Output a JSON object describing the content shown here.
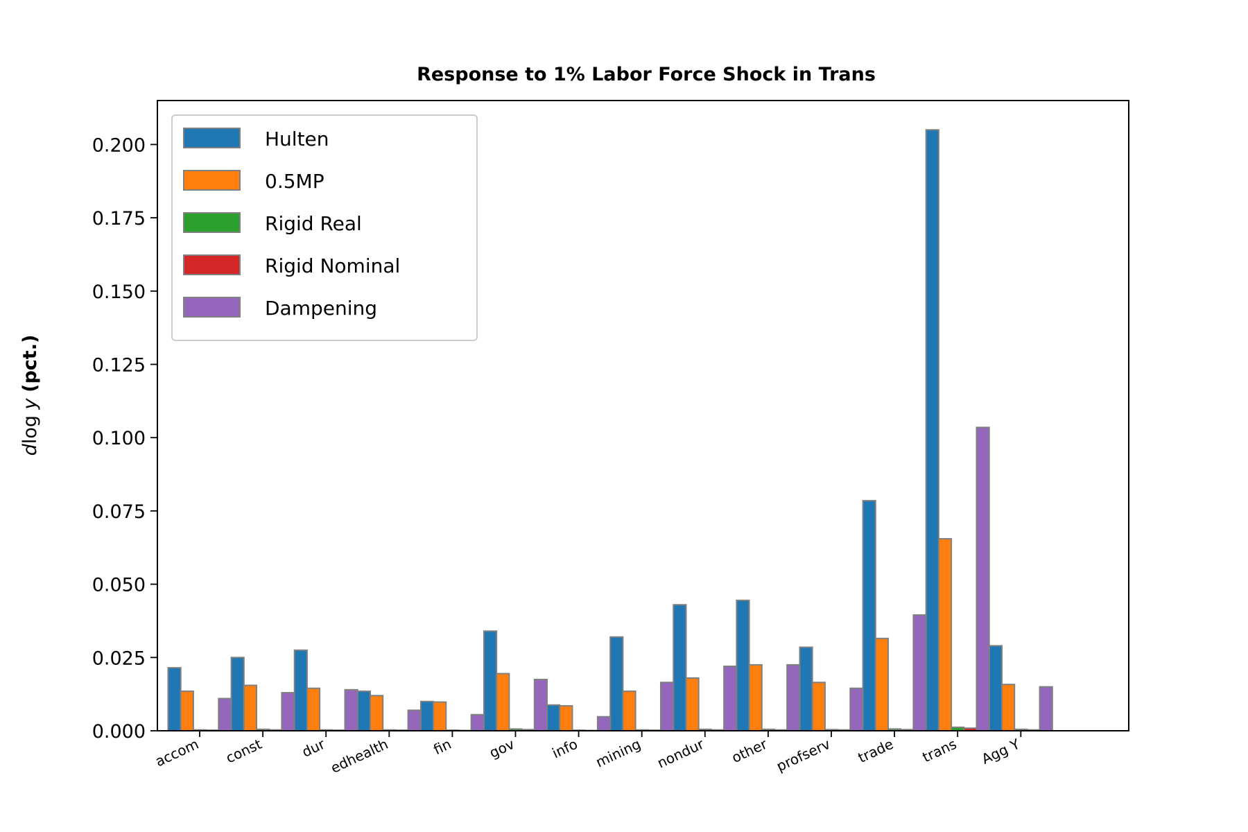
{
  "chart_data": {
    "type": "bar",
    "title": "Response to 1% Labor Force Shock in Trans",
    "ylabel": {
      "math": "d log y",
      "text": "(pct.)"
    },
    "xlabel": "",
    "categories": [
      "accom",
      "const",
      "dur",
      "edhealth",
      "fin",
      "gov",
      "info",
      "mining",
      "nondur",
      "other",
      "profserv",
      "trade",
      "trans",
      "Agg Y"
    ],
    "ylim": [
      0,
      0.215
    ],
    "yticks": [
      "0.000",
      "0.025",
      "0.050",
      "0.075",
      "0.100",
      "0.125",
      "0.150",
      "0.175",
      "0.200"
    ],
    "legend_position": "top-left",
    "grid": false,
    "series": [
      {
        "name": "Hulten",
        "color": "#1f77b4",
        "values": [
          0.0215,
          0.025,
          0.0275,
          0.0135,
          0.01,
          0.034,
          0.0088,
          0.032,
          0.043,
          0.0445,
          0.0285,
          0.0785,
          0.205,
          0.029
        ]
      },
      {
        "name": "0.5MP",
        "color": "#ff7f0e",
        "values": [
          0.0135,
          0.0155,
          0.0145,
          0.012,
          0.0098,
          0.0195,
          0.0085,
          0.0135,
          0.018,
          0.0225,
          0.0165,
          0.0315,
          0.0655,
          0.0158
        ]
      },
      {
        "name": "Rigid Real",
        "color": "#2ca02c",
        "values": [
          0.0003,
          0.0005,
          0.0003,
          0.0003,
          0.0002,
          0.0006,
          0.0002,
          0.0003,
          0.0005,
          0.0005,
          0.0004,
          0.0006,
          0.0012,
          0.0005
        ]
      },
      {
        "name": "Rigid Nominal",
        "color": "#d62728",
        "values": [
          0.0002,
          0.0003,
          0.0002,
          0.0002,
          0.0001,
          0.0004,
          0.0001,
          0.0002,
          0.0003,
          0.0003,
          0.0003,
          0.0004,
          0.0009,
          0.0003
        ]
      },
      {
        "name": "Dampening",
        "color": "#9467bd",
        "values": [
          0.011,
          0.013,
          0.014,
          0.007,
          0.0055,
          0.0175,
          0.0048,
          0.0165,
          0.022,
          0.0225,
          0.0145,
          0.0395,
          0.1035,
          0.015
        ]
      }
    ]
  }
}
